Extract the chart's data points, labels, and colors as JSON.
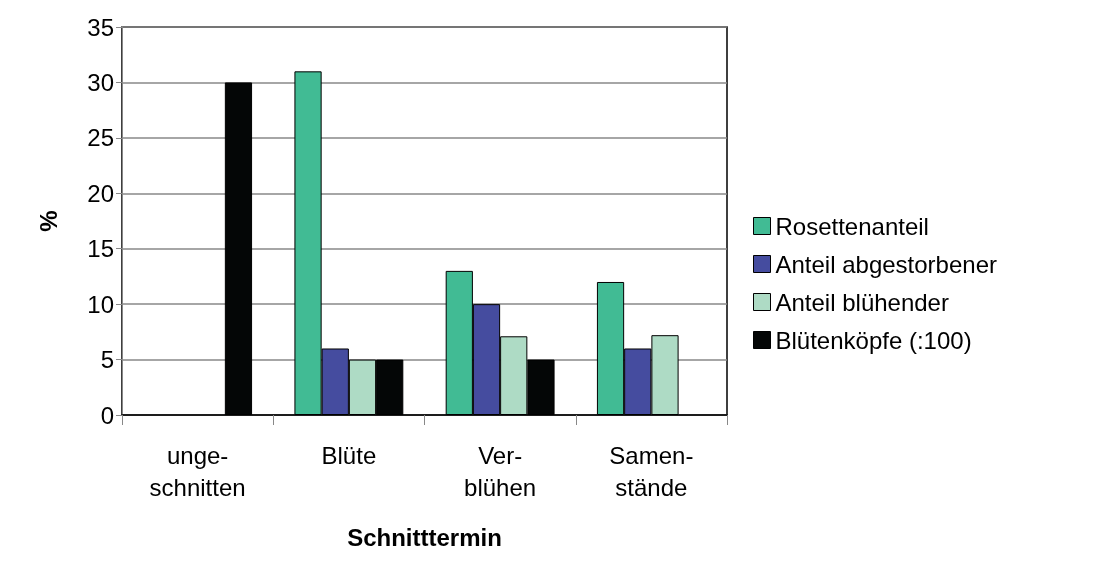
{
  "chart_data": {
    "type": "bar",
    "xlabel": "Schnitttermin",
    "ylabel": "%",
    "categories": [
      "unge-\nschnitten",
      "Blüte",
      "Ver-\nblühen",
      "Samen-\nstände"
    ],
    "series": [
      {
        "name": "Rosettenanteil",
        "color": "#41bb94",
        "values": [
          null,
          31,
          13,
          12
        ]
      },
      {
        "name": "Anteil abgestorbener",
        "color": "#454c9f",
        "values": [
          null,
          6,
          10,
          6
        ]
      },
      {
        "name": "Anteil blühender",
        "color": "#aedbc5",
        "values": [
          null,
          5,
          7.1,
          7.2
        ]
      },
      {
        "name": "Blütenköpfe (:100)",
        "color": "#040606",
        "values": [
          30,
          5,
          5,
          null
        ]
      }
    ],
    "ylim": [
      0,
      35
    ],
    "yticks": [
      0,
      5,
      10,
      15,
      20,
      25,
      30,
      35
    ],
    "grid": "y",
    "legend": "right"
  }
}
